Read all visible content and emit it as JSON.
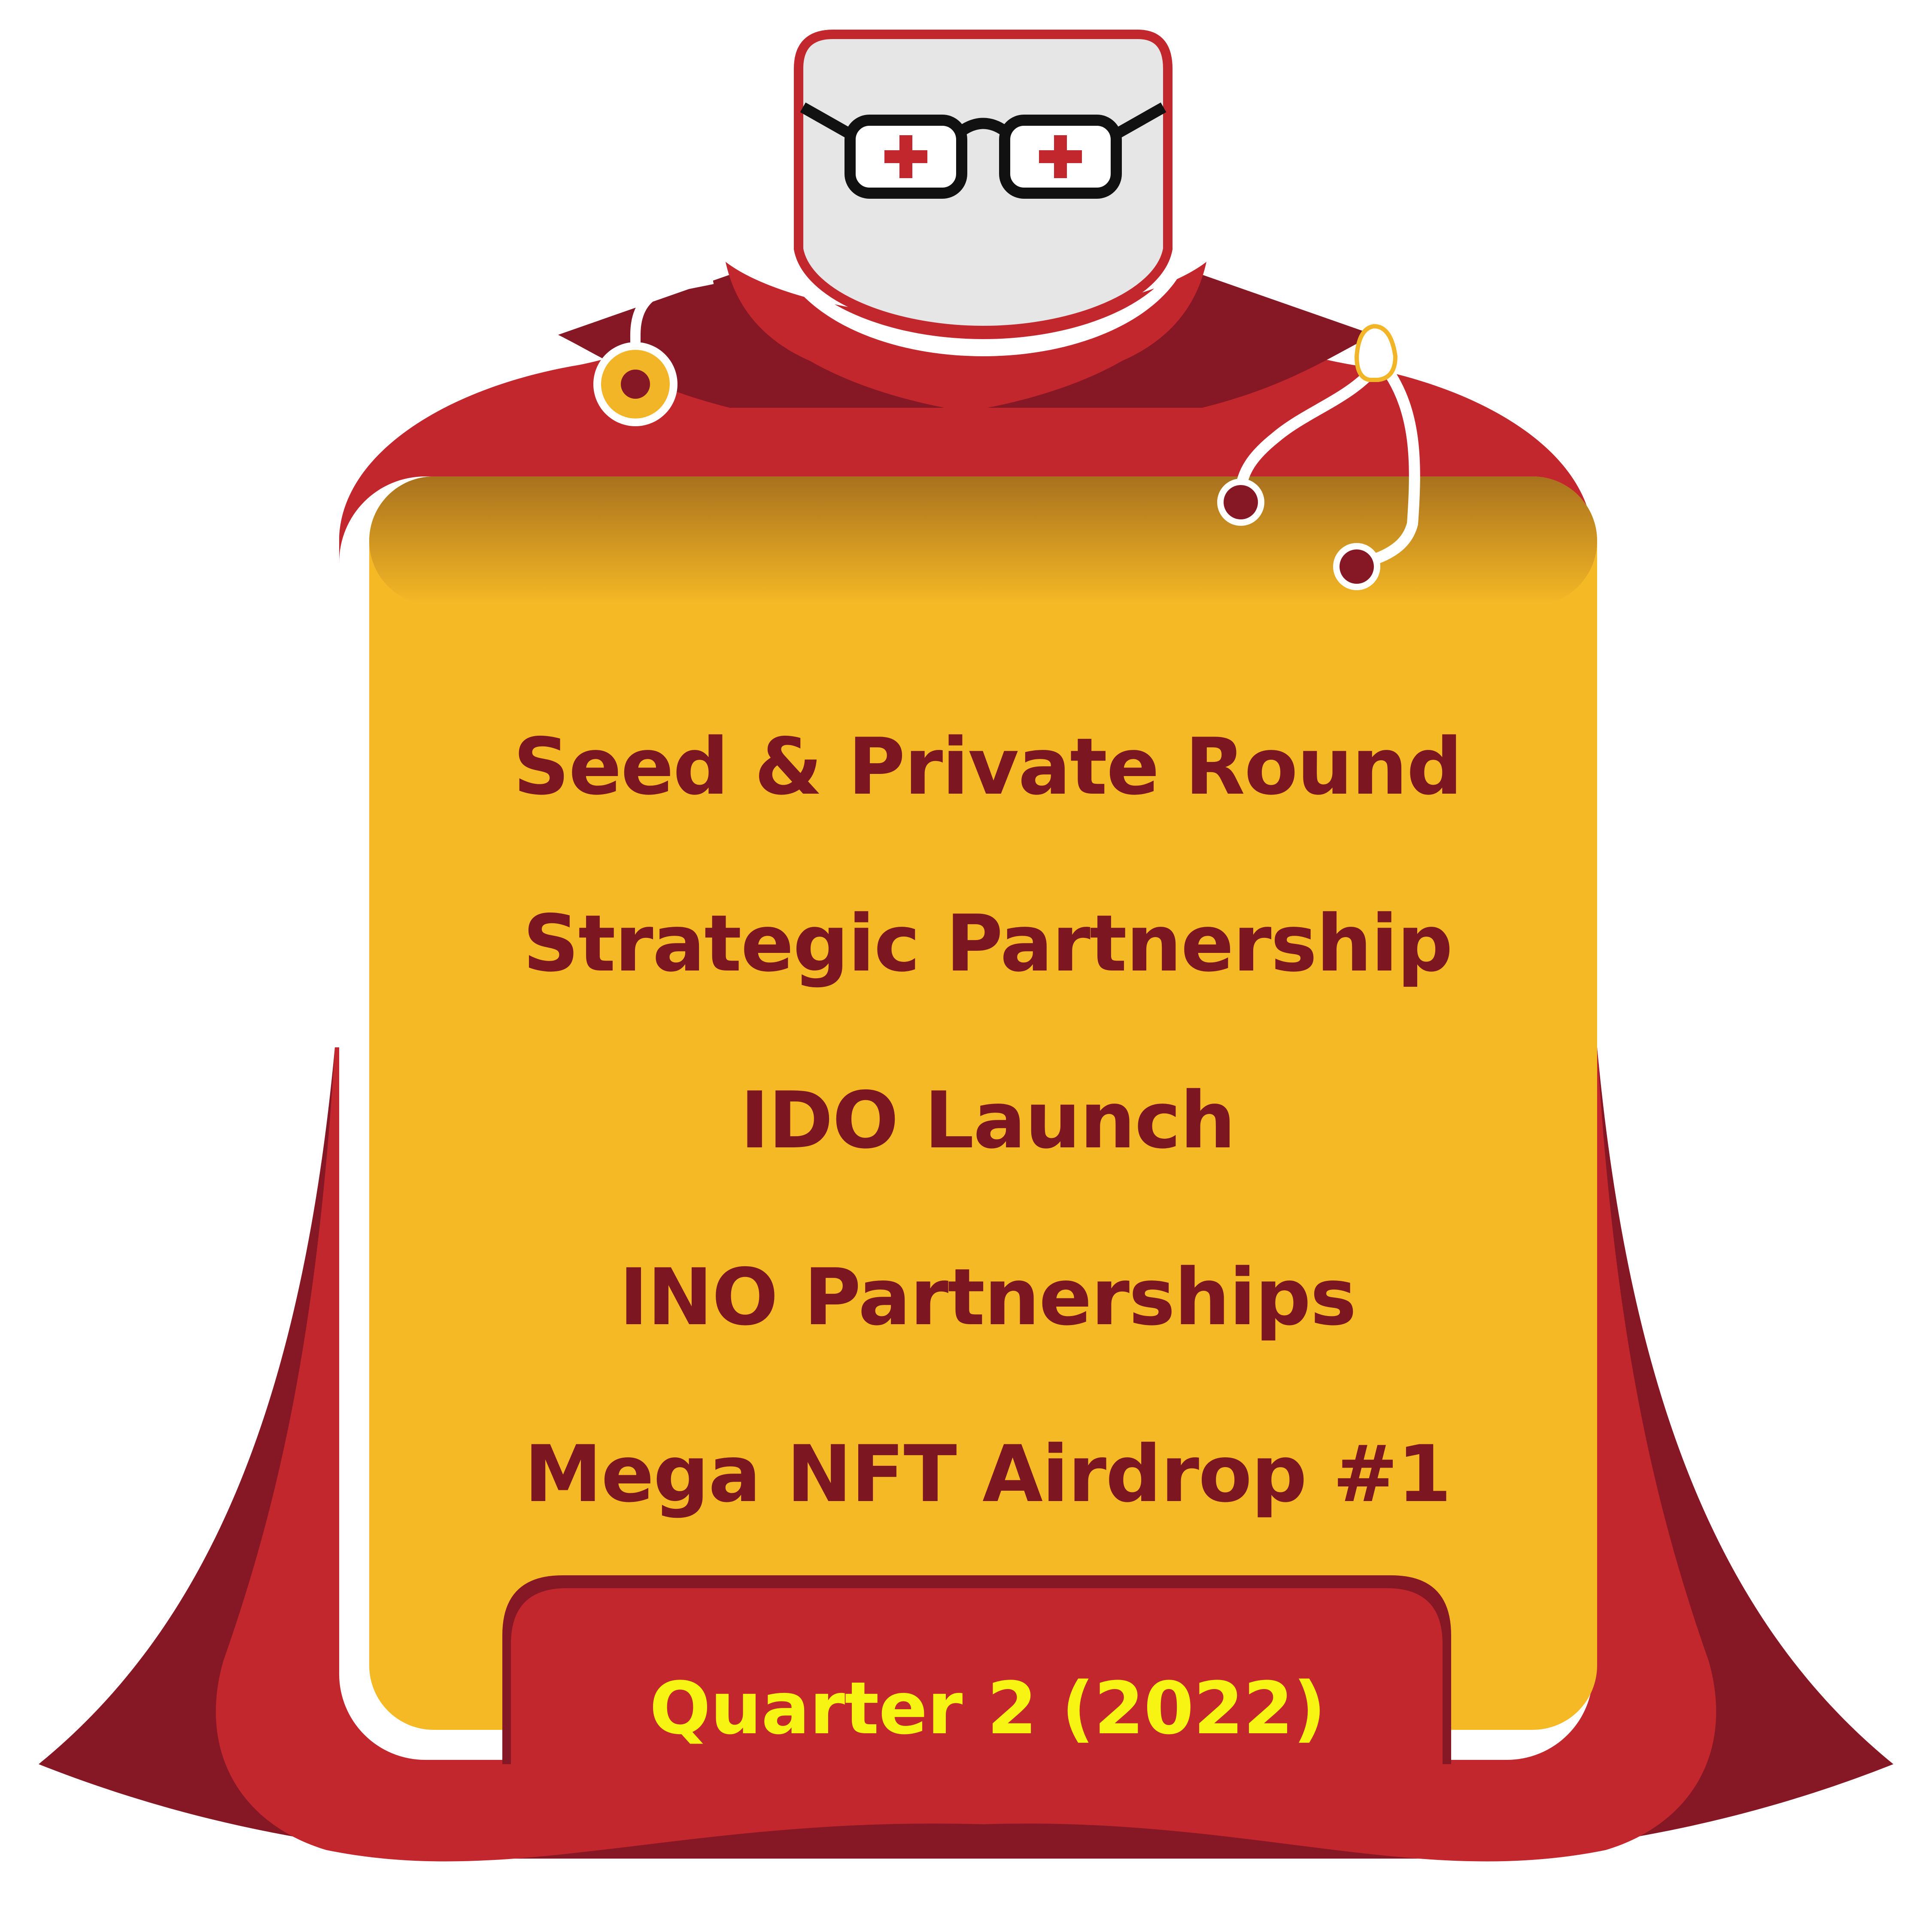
{
  "roadmap": {
    "items": [
      {
        "label": "Seed & Private Round"
      },
      {
        "label": "Strategic Partnership"
      },
      {
        "label": "IDO Launch"
      },
      {
        "label": "INO Partnerships"
      },
      {
        "label": "Mega NFT Airdrop #1"
      }
    ],
    "quarter_label": "Quarter 2 (2022)"
  },
  "colors": {
    "cape_red": "#c1272d",
    "cape_dark": "#861724",
    "panel_yellow": "#f6b926",
    "text_maroon": "#7c1620",
    "quarter_yellow": "#f7f312",
    "head_gray": "#e6e6e7"
  },
  "icons": [
    "glasses-icon",
    "medical-cross-icon",
    "stethoscope-icon"
  ]
}
